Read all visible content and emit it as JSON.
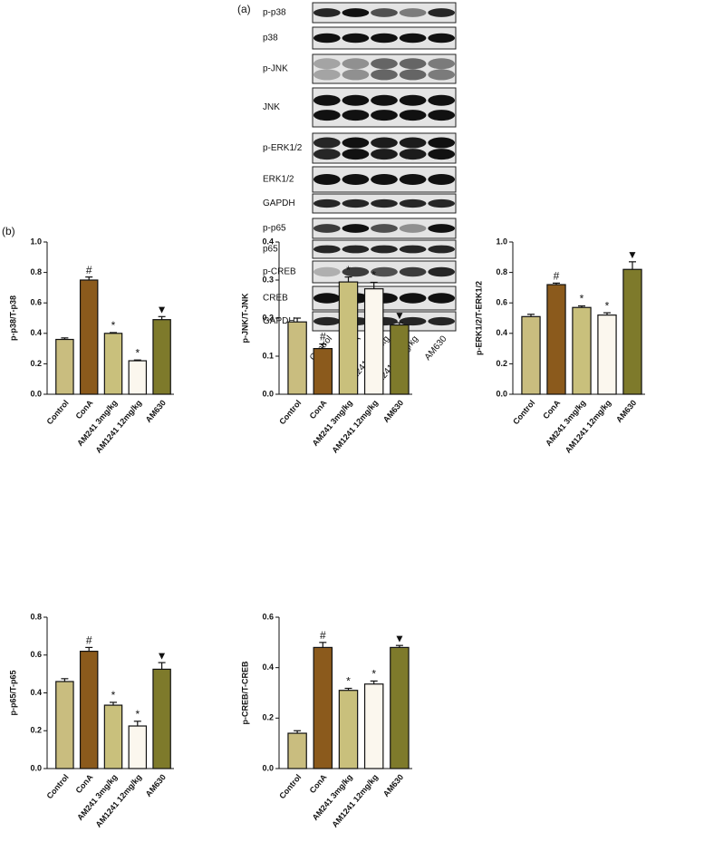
{
  "panel_labels": [
    "(a)",
    "(b)"
  ],
  "blot": {
    "rows": [
      "p-p38",
      "p38",
      "p-JNK",
      "JNK",
      "p-ERK1/2",
      "ERK1/2",
      "GAPDH",
      "p-p65",
      "p65",
      "p-CREB",
      "CREB",
      "GAPDH"
    ],
    "lanes": [
      "Control",
      "ConA",
      "AM1241 3mg/kg",
      "AM1241 12mg/kg",
      "AM630"
    ]
  },
  "chart_data": [
    {
      "type": "bar",
      "ylabel": "p-p38/T-p38",
      "categories": [
        "Control",
        "ConA",
        "AM241 3mg/kg",
        "AM1241 12mg/kg",
        "AM630"
      ],
      "values": [
        0.36,
        0.75,
        0.4,
        0.22,
        0.49
      ],
      "errors": [
        0.01,
        0.02,
        0.005,
        0.005,
        0.02
      ],
      "markers": [
        null,
        "#",
        "*",
        "*",
        "▼"
      ],
      "colors": [
        "#c9bd7f",
        "#8b5a1c",
        "#c9c07c",
        "#fbf7ee",
        "#7e7a2b"
      ],
      "ylim": [
        0,
        1
      ],
      "yticks": [
        {
          "value": 0,
          "label": "0.0"
        },
        0.2,
        0.4,
        0.6,
        0.8,
        {
          "value": 1,
          "label": "1.0"
        }
      ]
    },
    {
      "type": "bar",
      "ylabel": "p-JNK/T-JNK",
      "categories": [
        "Control",
        "ConA",
        "AM241 3mg/kg",
        "AM1241 12mg/kg",
        "AM630"
      ],
      "values": [
        0.19,
        0.12,
        0.295,
        0.277,
        0.182
      ],
      "errors": [
        0.01,
        0.012,
        0.013,
        0.017,
        0.006
      ],
      "markers": [
        null,
        "#",
        "*",
        "*",
        "▼"
      ],
      "colors": [
        "#c9bd7f",
        "#8b5a1c",
        "#c9c07c",
        "#fbf7ee",
        "#7e7a2b"
      ],
      "ylim": [
        0,
        0.4
      ],
      "yticks": [
        {
          "value": 0,
          "label": "0.0"
        },
        0.1,
        0.2,
        0.3,
        0.4
      ]
    },
    {
      "type": "bar",
      "ylabel": "p-ERK1/2/T-ERK1/2",
      "categories": [
        "Control",
        "ConA",
        "AM241 3mg/kg",
        "AM1241 12mg/kg",
        "AM630"
      ],
      "values": [
        0.51,
        0.72,
        0.57,
        0.52,
        0.82
      ],
      "errors": [
        0.015,
        0.01,
        0.01,
        0.015,
        0.05
      ],
      "markers": [
        null,
        "#",
        "*",
        "*",
        "▼"
      ],
      "colors": [
        "#c9bd7f",
        "#8b5a1c",
        "#c9c07c",
        "#fbf7ee",
        "#7e7a2b"
      ],
      "ylim": [
        0,
        1
      ],
      "yticks": [
        {
          "value": 0,
          "label": "0.0"
        },
        0.2,
        0.4,
        0.6,
        0.8,
        {
          "value": 1,
          "label": "1.0"
        }
      ]
    },
    {
      "type": "bar",
      "ylabel": "p-p65/T-p65",
      "categories": [
        "Control",
        "ConA",
        "AM241 3mg/kg",
        "AM1241 12mg/kg",
        "AM630"
      ],
      "values": [
        0.46,
        0.62,
        0.335,
        0.225,
        0.525
      ],
      "errors": [
        0.015,
        0.02,
        0.015,
        0.025,
        0.035
      ],
      "markers": [
        null,
        "#",
        "*",
        "*",
        "▼"
      ],
      "colors": [
        "#c9bd7f",
        "#8b5a1c",
        "#c9c07c",
        "#fbf7ee",
        "#7e7a2b"
      ],
      "ylim": [
        0,
        0.8
      ],
      "yticks": [
        {
          "value": 0,
          "label": "0.0"
        },
        0.2,
        0.4,
        0.6,
        0.8
      ]
    },
    {
      "type": "bar",
      "ylabel": "p-CREB/T-CREB",
      "categories": [
        "Control",
        "ConA",
        "AM241 3mg/kg",
        "AM1241 12mg/kg",
        "AM630"
      ],
      "values": [
        0.14,
        0.48,
        0.31,
        0.335,
        0.48
      ],
      "errors": [
        0.01,
        0.02,
        0.008,
        0.012,
        0.008
      ],
      "markers": [
        null,
        "#",
        "*",
        "*",
        "▼"
      ],
      "colors": [
        "#c9bd7f",
        "#8b5a1c",
        "#c9c07c",
        "#fbf7ee",
        "#7e7a2b"
      ],
      "ylim": [
        0,
        0.6
      ],
      "yticks": [
        {
          "value": 0,
          "label": "0.0"
        },
        0.2,
        0.4,
        0.6
      ]
    }
  ]
}
